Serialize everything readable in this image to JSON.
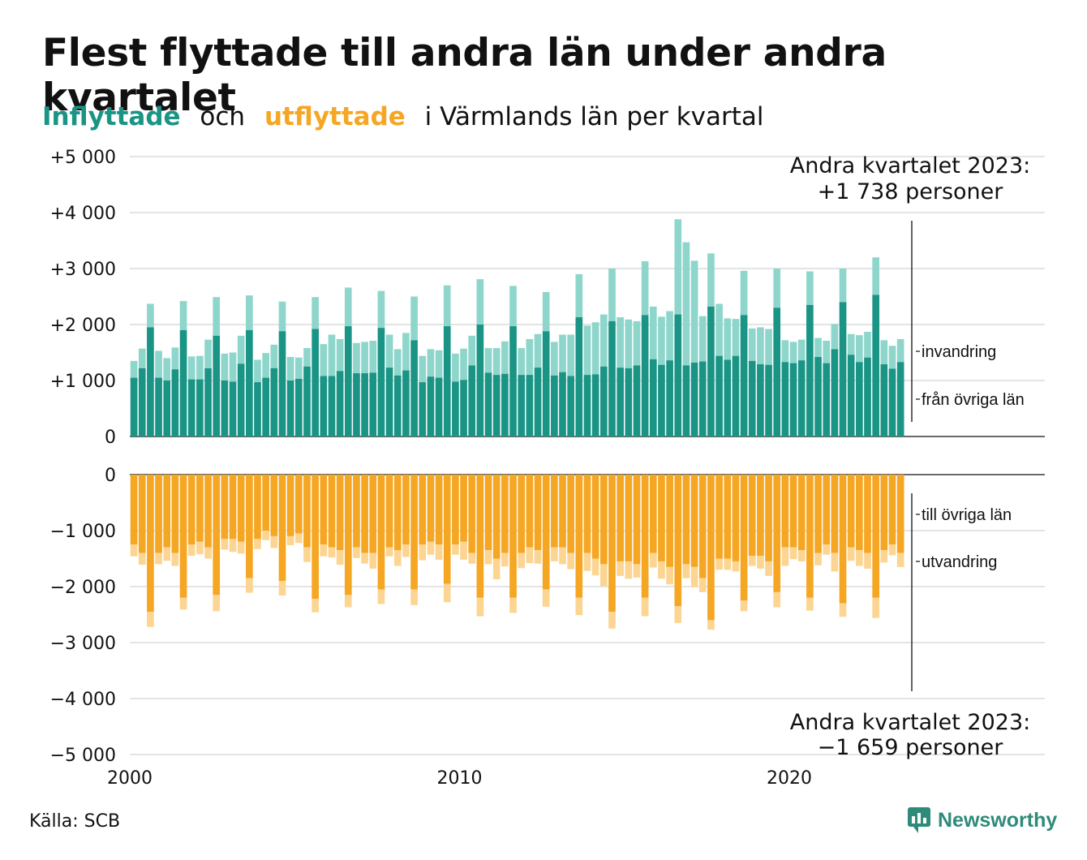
{
  "header": {
    "title": "Flest flyttade till andra län under andra kvartalet",
    "subtitle_inflow": "Inflyttade",
    "subtitle_och": "och",
    "subtitle_outflow": "utflyttade",
    "subtitle_rest": "i Värmlands län per kvartal"
  },
  "footer": {
    "source": "Källa: SCB",
    "logo": "Newsworthy"
  },
  "colors": {
    "inflow_domestic": "#1a9485",
    "inflow_immigration": "#8ed6cb",
    "outflow_domestic": "#f5a623",
    "outflow_emigration": "#fcd593"
  },
  "chart_data": {
    "type": "bar",
    "title": "Flest flyttade till andra län under andra kvartalet",
    "subtitle": "Inflyttade och utflyttade i Värmlands län per kvartal",
    "x_start": 2000,
    "x_step": 0.25,
    "xlim": [
      2000,
      2027.75
    ],
    "x_ticks": [
      "2000",
      "2010",
      "2020"
    ],
    "y_ticks_top": [
      "+5 000",
      "+4 000",
      "+3 000",
      "+2 000",
      "+1 000",
      "0"
    ],
    "y_ticks_bottom": [
      "0",
      "−1 000",
      "−2 000",
      "−3 000",
      "−4 000",
      "−5 000"
    ],
    "ylim_top": [
      0,
      5000
    ],
    "ylim_bottom": [
      -5000,
      0
    ],
    "series_labels": {
      "inflow_immigration": "invandring",
      "inflow_domestic": "från övriga län",
      "outflow_domestic": "till övriga län",
      "outflow_emigration": "utvandring"
    },
    "annotation_top": {
      "line1": "Andra kvartalet 2023:",
      "line2": "+1 738 personer"
    },
    "annotation_bottom": {
      "line1": "Andra kvartalet 2023:",
      "line2": "−1 659 personer"
    },
    "inflow_domestic": [
      1050,
      1220,
      1950,
      1050,
      1000,
      1200,
      1900,
      1020,
      1020,
      1220,
      1800,
      1000,
      980,
      1300,
      1900,
      970,
      1050,
      1220,
      1880,
      1000,
      1030,
      1250,
      1920,
      1080,
      1080,
      1170,
      1970,
      1130,
      1130,
      1140,
      1940,
      1230,
      1090,
      1180,
      1720,
      970,
      1070,
      1050,
      1970,
      980,
      1010,
      1270,
      2000,
      1140,
      1100,
      1120,
      1970,
      1100,
      1100,
      1230,
      1880,
      1090,
      1150,
      1080,
      2130,
      1100,
      1110,
      1250,
      2060,
      1230,
      1220,
      1270,
      2170,
      1380,
      1280,
      1360,
      2180,
      1270,
      1320,
      1340,
      2320,
      1440,
      1370,
      1440,
      2170,
      1350,
      1290,
      1280,
      2300,
      1330,
      1310,
      1360,
      2350,
      1420,
      1310,
      1560,
      2400,
      1460,
      1330,
      1410,
      2530,
      1290,
      1210,
      1330
    ],
    "inflow_immigration": [
      300,
      350,
      420,
      480,
      400,
      390,
      520,
      410,
      420,
      510,
      690,
      480,
      520,
      500,
      620,
      400,
      440,
      420,
      530,
      420,
      380,
      330,
      570,
      570,
      740,
      570,
      690,
      540,
      560,
      570,
      660,
      590,
      470,
      670,
      780,
      470,
      490,
      490,
      730,
      500,
      560,
      530,
      810,
      440,
      480,
      580,
      720,
      480,
      640,
      600,
      700,
      600,
      670,
      740,
      770,
      880,
      930,
      930,
      940,
      900,
      870,
      790,
      960,
      940,
      860,
      880,
      1700,
      2200,
      1820,
      810,
      950,
      930,
      740,
      660,
      790,
      580,
      660,
      640,
      700,
      390,
      380,
      370,
      600,
      340,
      400,
      450,
      600,
      370,
      480,
      460,
      670,
      430,
      410,
      410
    ],
    "outflow_domestic": [
      1250,
      1400,
      2450,
      1400,
      1300,
      1400,
      2200,
      1250,
      1200,
      1300,
      2150,
      1150,
      1150,
      1200,
      1850,
      1150,
      1000,
      1100,
      1900,
      1100,
      1050,
      1300,
      2220,
      1250,
      1300,
      1350,
      2150,
      1300,
      1400,
      1400,
      2050,
      1300,
      1350,
      1250,
      2050,
      1250,
      1200,
      1250,
      1950,
      1250,
      1200,
      1400,
      2200,
      1350,
      1500,
      1400,
      2200,
      1400,
      1300,
      1350,
      2050,
      1300,
      1300,
      1400,
      2200,
      1400,
      1500,
      1600,
      2450,
      1550,
      1550,
      1600,
      2200,
      1400,
      1550,
      1650,
      2350,
      1600,
      1650,
      1850,
      2600,
      1500,
      1500,
      1550,
      2250,
      1450,
      1450,
      1550,
      2100,
      1300,
      1300,
      1350,
      2200,
      1400,
      1250,
      1400,
      2300,
      1300,
      1350,
      1400,
      2200,
      1350,
      1250,
      1400
    ],
    "outflow_emigration": [
      210,
      210,
      270,
      200,
      240,
      230,
      210,
      200,
      220,
      200,
      290,
      190,
      230,
      210,
      260,
      180,
      170,
      210,
      260,
      160,
      170,
      260,
      240,
      210,
      180,
      260,
      220,
      190,
      190,
      280,
      260,
      160,
      280,
      220,
      280,
      280,
      230,
      270,
      330,
      180,
      320,
      190,
      330,
      250,
      370,
      240,
      270,
      270,
      280,
      240,
      310,
      250,
      300,
      290,
      310,
      320,
      300,
      390,
      300,
      260,
      310,
      240,
      330,
      260,
      310,
      310,
      300,
      250,
      360,
      250,
      170,
      200,
      200,
      180,
      190,
      180,
      230,
      260,
      270,
      330,
      210,
      200,
      230,
      220,
      180,
      330,
      240,
      240,
      280,
      280,
      360,
      220,
      190,
      250
    ]
  }
}
